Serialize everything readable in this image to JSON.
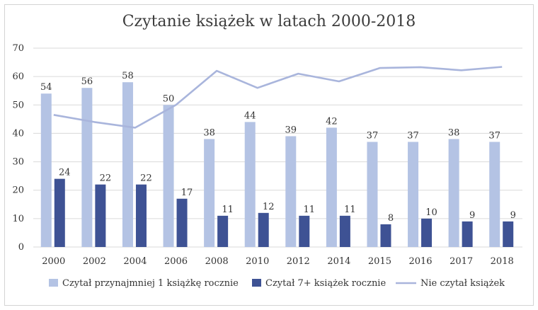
{
  "chart_data": {
    "type": "bar",
    "title": "Czytanie książek w latach 2000-2018",
    "categories": [
      "2000",
      "2002",
      "2004",
      "2006",
      "2008",
      "2010",
      "2012",
      "2014",
      "2015",
      "2016",
      "2017",
      "2018"
    ],
    "ylim": [
      0,
      70
    ],
    "yticks": [
      0,
      10,
      20,
      30,
      40,
      50,
      60,
      70
    ],
    "grid": true,
    "legend": "bottom",
    "series": [
      {
        "name": "Czytał przynajmniej 1 książkę rocznie",
        "type": "bar",
        "color": "#b4c3e4",
        "values": [
          54,
          56,
          58,
          50,
          38,
          44,
          39,
          42,
          37,
          37,
          38,
          37
        ]
      },
      {
        "name": "Czytał 7+ książek rocznie",
        "type": "bar",
        "color": "#3e5294",
        "values": [
          24,
          22,
          22,
          17,
          11,
          12,
          11,
          11,
          8,
          10,
          9,
          9
        ]
      },
      {
        "name": "Nie czytał książek",
        "type": "line",
        "color": "#a9b5dc",
        "values": [
          46.5,
          44,
          42,
          50,
          62,
          56,
          61,
          58.3,
          63,
          63.3,
          62.2,
          63.4
        ]
      }
    ]
  }
}
